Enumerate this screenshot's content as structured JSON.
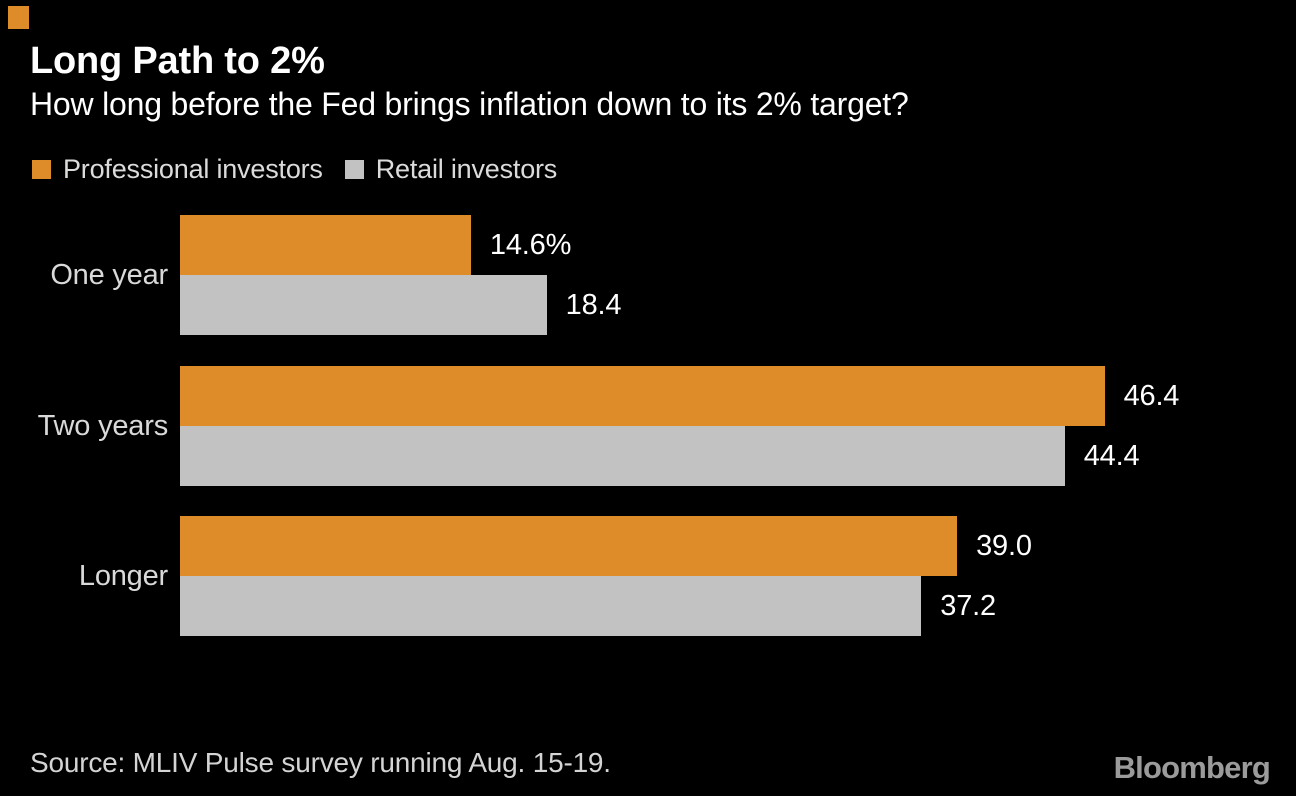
{
  "brand": {
    "accent_color": "#DE8C29",
    "corner_mark_color": "#DE8C29",
    "logo_text": "Bloomberg",
    "logo_color": "#9B9B9B"
  },
  "header": {
    "title": "Long Path to 2%",
    "subtitle": "How long before the Fed brings inflation down to its 2% target?"
  },
  "legend": {
    "items": [
      {
        "label": "Professional investors",
        "color": "#DE8C29"
      },
      {
        "label": "Retail investors",
        "color": "#C2C2C3"
      }
    ]
  },
  "chart_data": {
    "type": "bar",
    "orientation": "horizontal",
    "title": "Long Path to 2%",
    "subtitle": "How long before the Fed brings inflation down to its 2% target?",
    "categories": [
      "One year",
      "Two years",
      "Longer"
    ],
    "series": [
      {
        "name": "Professional investors",
        "color": "#DE8C29",
        "values": [
          14.6,
          46.4,
          39.0
        ]
      },
      {
        "name": "Retail investors",
        "color": "#C2C2C3",
        "values": [
          18.4,
          44.4,
          37.2
        ]
      }
    ],
    "value_labels": [
      [
        "14.6%",
        "18.4"
      ],
      [
        "46.4",
        "44.4"
      ],
      [
        "39.0",
        "37.2"
      ]
    ],
    "unit": "%",
    "xlim": [
      0,
      54.5
    ],
    "grid": false,
    "axes_shown": false,
    "legend_position": "top-left",
    "background": "#000000"
  },
  "footer": {
    "source": "Source: MLIV Pulse survey running Aug. 15-19."
  }
}
